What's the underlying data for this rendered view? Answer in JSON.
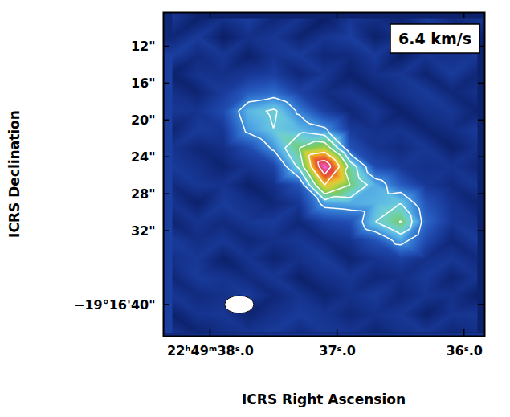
{
  "chart_data": {
    "type": "heatmap",
    "title": "6.4 km/s",
    "x_label": "ICRS Right Ascension",
    "y_label": "ICRS Declination",
    "xlim": [
      38.37,
      35.84
    ],
    "ylim": [
      43.4,
      8.3
    ],
    "xticks": [
      {
        "value": 38,
        "label": "22ʰ49ᵐ38ˢ.0"
      },
      {
        "value": 37,
        "label": "37ˢ.0"
      },
      {
        "value": 36,
        "label": "36ˢ.0"
      }
    ],
    "yticks": [
      {
        "value": 12,
        "label": "12\""
      },
      {
        "value": 16,
        "label": "16\""
      },
      {
        "value": 20,
        "label": "20\""
      },
      {
        "value": 24,
        "label": "24\""
      },
      {
        "value": 28,
        "label": "28\""
      },
      {
        "value": 32,
        "label": "32\""
      },
      {
        "value": 40,
        "label": "−19°16'40\""
      }
    ],
    "x": [
      38.3,
      38.1,
      37.9,
      37.7,
      37.5,
      37.3,
      37.1,
      36.9,
      36.7,
      36.5,
      36.3,
      36.1,
      35.9
    ],
    "y": [
      9,
      11,
      13,
      15,
      17,
      19,
      21,
      23,
      25,
      27,
      29,
      31,
      33,
      35,
      37,
      39,
      41,
      43
    ],
    "z": [
      [
        0.3,
        -0.4,
        0.1,
        0.5,
        -0.2,
        0.2,
        -0.5,
        0.3,
        0.0,
        -0.3,
        0.4,
        -0.1,
        0.2
      ],
      [
        -0.2,
        0.4,
        -0.5,
        0.1,
        0.3,
        -0.3,
        0.2,
        0.5,
        -0.4,
        0.1,
        -0.2,
        0.3,
        -0.4
      ],
      [
        0.5,
        -0.1,
        0.3,
        -0.4,
        0.2,
        0.4,
        -0.2,
        -0.1,
        0.4,
        -0.5,
        0.2,
        0.1,
        0.3
      ],
      [
        -0.4,
        0.2,
        0.1,
        0.3,
        0.5,
        -0.2,
        0.3,
        -0.4,
        0.1,
        0.3,
        -0.3,
        0.4,
        -0.2
      ],
      [
        0.1,
        -0.3,
        0.4,
        1.2,
        1.5,
        0.6,
        0.0,
        0.2,
        -0.3,
        0.1,
        0.4,
        -0.2,
        0.1
      ],
      [
        0.3,
        0.2,
        0.8,
        2.8,
        3.4,
        1.8,
        0.5,
        -0.2,
        0.3,
        -0.4,
        0.1,
        0.3,
        -0.3
      ],
      [
        -0.3,
        0.4,
        0.3,
        2.3,
        3.2,
        2.8,
        2.2,
        0.4,
        0.1,
        0.2,
        -0.3,
        0.0,
        0.4
      ],
      [
        0.2,
        -0.2,
        0.0,
        0.8,
        2.2,
        4.5,
        5.5,
        1.0,
        0.2,
        -0.1,
        0.3,
        -0.4,
        0.1
      ],
      [
        0.4,
        0.1,
        -0.3,
        0.2,
        0.6,
        3.5,
        10.0,
        4.0,
        0.8,
        0.3,
        0.1,
        0.2,
        -0.2
      ],
      [
        -0.1,
        0.3,
        0.2,
        -0.4,
        0.1,
        1.0,
        6.5,
        4.5,
        2.6,
        1.2,
        0.3,
        -0.1,
        0.3
      ],
      [
        0.2,
        -0.4,
        0.4,
        0.1,
        -0.2,
        0.3,
        2.4,
        2.6,
        2.8,
        3.2,
        1.0,
        0.2,
        -0.3
      ],
      [
        -0.3,
        0.2,
        -0.1,
        0.3,
        0.4,
        -0.2,
        0.6,
        0.9,
        3.2,
        4.6,
        1.4,
        0.3,
        0.1
      ],
      [
        0.4,
        0.0,
        0.3,
        -0.2,
        0.1,
        0.3,
        -0.1,
        0.2,
        1.0,
        2.5,
        0.8,
        -0.2,
        0.4
      ],
      [
        0.1,
        0.3,
        -0.4,
        0.2,
        -0.3,
        0.1,
        0.4,
        -0.3,
        0.2,
        0.5,
        0.1,
        0.3,
        -0.1
      ],
      [
        -0.2,
        0.4,
        0.2,
        -0.1,
        0.3,
        -0.4,
        0.1,
        0.3,
        -0.2,
        0.0,
        0.4,
        -0.3,
        0.2
      ],
      [
        0.3,
        -0.1,
        0.1,
        0.4,
        -0.2,
        0.2,
        -0.3,
        0.1,
        0.4,
        -0.2,
        0.2,
        0.1,
        -0.4
      ],
      [
        -0.4,
        0.2,
        0.3,
        -0.3,
        0.1,
        0.4,
        0.2,
        -0.2,
        0.1,
        0.3,
        -0.4,
        0.2,
        0.3
      ],
      [
        0.2,
        -0.3,
        0.0,
        0.2,
        0.4,
        -0.1,
        0.3,
        0.2,
        -0.3,
        0.1,
        0.3,
        -0.2,
        0.0
      ]
    ],
    "contour_levels": [
      2,
      3.2,
      4.5,
      6.5,
      8.5
    ],
    "beam": {
      "ra": 37.77,
      "dec": 40.0,
      "width_s": 0.23,
      "height_arcsec": 1.9
    }
  }
}
